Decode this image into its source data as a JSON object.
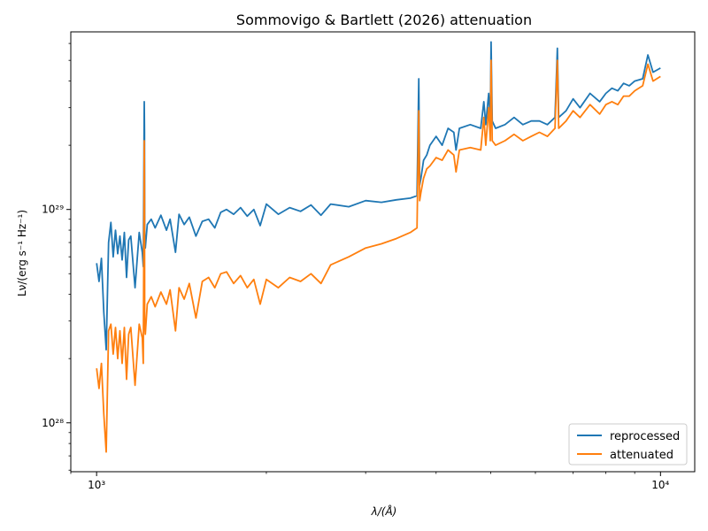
{
  "chart_data": {
    "type": "line",
    "title": "Sommovigo & Bartlett (2026) attenuation",
    "xlabel": "λ/(Å)",
    "ylabel": "Lν/(erg s⁻¹ Hz⁻¹)",
    "xscale": "log",
    "yscale": "log",
    "xlim": [
      900,
      11500
    ],
    "ylim": [
      5.9e+27,
      6.8e+29
    ],
    "xticks": [
      {
        "value": 1000,
        "label": "10³"
      },
      {
        "value": 10000,
        "label": "10⁴"
      }
    ],
    "yticks": [
      {
        "value": 1e+28,
        "label": "10²⁸"
      },
      {
        "value": 1e+29,
        "label": "10²⁹"
      }
    ],
    "grid": false,
    "legend": "bottom-right",
    "series": [
      {
        "name": "reprocessed",
        "color": "#1f77b4",
        "x": [
          1000,
          1010,
          1020,
          1030,
          1040,
          1050,
          1060,
          1070,
          1080,
          1090,
          1100,
          1110,
          1120,
          1130,
          1140,
          1150,
          1170,
          1190,
          1205,
          1210,
          1215,
          1216,
          1217,
          1220,
          1230,
          1250,
          1270,
          1300,
          1330,
          1350,
          1380,
          1400,
          1430,
          1460,
          1500,
          1540,
          1580,
          1620,
          1660,
          1700,
          1750,
          1800,
          1850,
          1900,
          1950,
          2000,
          2100,
          2200,
          2300,
          2400,
          2500,
          2600,
          2800,
          3000,
          3200,
          3400,
          3600,
          3700,
          3727,
          3740,
          3760,
          3800,
          3850,
          3900,
          4000,
          4100,
          4200,
          4300,
          4340,
          4400,
          4600,
          4800,
          4861,
          4900,
          4959,
          4990,
          5007,
          5030,
          5100,
          5300,
          5500,
          5700,
          5900,
          6100,
          6300,
          6500,
          6563,
          6600,
          6800,
          7000,
          7200,
          7500,
          7800,
          8000,
          8200,
          8400,
          8600,
          8800,
          9000,
          9300,
          9500,
          9700,
          10000
        ],
        "y": [
          5.6e+28,
          4.6e+28,
          5.9e+28,
          3.3e+28,
          2.2e+28,
          7e+28,
          8.7e+28,
          6e+28,
          8e+28,
          6.2e+28,
          7.5e+28,
          5.8e+28,
          7.8e+28,
          4.8e+28,
          7.2e+28,
          7.5e+28,
          4.3e+28,
          7.8e+28,
          6.3e+28,
          5.4e+28,
          3.2e+29,
          2.3e+29,
          7.6e+28,
          6.6e+28,
          8.5e+28,
          9e+28,
          8.2e+28,
          9.4e+28,
          8e+28,
          9e+28,
          6.3e+28,
          9.5e+28,
          8.5e+28,
          9.2e+28,
          7.5e+28,
          8.8e+28,
          9e+28,
          8.2e+28,
          9.7e+28,
          1e+29,
          9.5e+28,
          1.02e+29,
          9.3e+28,
          1e+29,
          8.4e+28,
          1.06e+29,
          9.5e+28,
          1.02e+29,
          9.8e+28,
          1.05e+29,
          9.4e+28,
          1.06e+29,
          1.03e+29,
          1.1e+29,
          1.08e+29,
          1.11e+29,
          1.13e+29,
          1.16e+29,
          4.1e+29,
          1.3e+29,
          1.4e+29,
          1.7e+29,
          1.8e+29,
          2e+29,
          2.2e+29,
          2e+29,
          2.4e+29,
          2.3e+29,
          1.9e+29,
          2.4e+29,
          2.5e+29,
          2.4e+29,
          3.2e+29,
          2.5e+29,
          3.5e+29,
          2.6e+29,
          6.1e+29,
          2.6e+29,
          2.4e+29,
          2.5e+29,
          2.7e+29,
          2.5e+29,
          2.6e+29,
          2.6e+29,
          2.5e+29,
          2.7e+29,
          5.7e+29,
          2.7e+29,
          2.9e+29,
          3.3e+29,
          3e+29,
          3.5e+29,
          3.2e+29,
          3.5e+29,
          3.7e+29,
          3.6e+29,
          3.9e+29,
          3.8e+29,
          4e+29,
          4.1e+29,
          5.3e+29,
          4.4e+29,
          4.6e+29
        ]
      },
      {
        "name": "attenuated",
        "color": "#ff7f0e",
        "x": [
          1000,
          1010,
          1020,
          1030,
          1040,
          1050,
          1060,
          1070,
          1080,
          1090,
          1100,
          1110,
          1120,
          1130,
          1140,
          1150,
          1170,
          1190,
          1205,
          1210,
          1215,
          1216,
          1217,
          1220,
          1230,
          1250,
          1270,
          1300,
          1330,
          1350,
          1380,
          1400,
          1430,
          1460,
          1500,
          1540,
          1580,
          1620,
          1660,
          1700,
          1750,
          1800,
          1850,
          1900,
          1950,
          2000,
          2100,
          2200,
          2300,
          2400,
          2500,
          2600,
          2800,
          3000,
          3200,
          3400,
          3600,
          3700,
          3727,
          3740,
          3760,
          3800,
          3850,
          3900,
          4000,
          4100,
          4200,
          4300,
          4340,
          4400,
          4600,
          4800,
          4861,
          4900,
          4959,
          4990,
          5007,
          5030,
          5100,
          5300,
          5500,
          5700,
          5900,
          6100,
          6300,
          6500,
          6563,
          6600,
          6800,
          7000,
          7200,
          7500,
          7800,
          8000,
          8200,
          8400,
          8600,
          8800,
          9000,
          9300,
          9500,
          9700,
          10000
        ],
        "y": [
          1.8e+28,
          1.45e+28,
          1.9e+28,
          1.1e+28,
          7.3e+27,
          2.7e+28,
          2.9e+28,
          2.1e+28,
          2.8e+28,
          2e+28,
          2.7e+28,
          1.9e+28,
          2.8e+28,
          1.6e+28,
          2.6e+28,
          2.8e+28,
          1.5e+28,
          2.9e+28,
          2.5e+28,
          1.9e+28,
          2.1e+29,
          1.2e+29,
          2.9e+28,
          2.6e+28,
          3.6e+28,
          3.9e+28,
          3.5e+28,
          4.1e+28,
          3.6e+28,
          4.2e+28,
          2.7e+28,
          4.3e+28,
          3.8e+28,
          4.5e+28,
          3.1e+28,
          4.6e+28,
          4.8e+28,
          4.3e+28,
          5e+28,
          5.1e+28,
          4.5e+28,
          4.9e+28,
          4.3e+28,
          4.7e+28,
          3.6e+28,
          4.7e+28,
          4.3e+28,
          4.8e+28,
          4.6e+28,
          5e+28,
          4.5e+28,
          5.5e+28,
          6e+28,
          6.6e+28,
          6.9e+28,
          7.3e+28,
          7.8e+28,
          8.2e+28,
          2.9e+29,
          1.1e+29,
          1.2e+29,
          1.4e+29,
          1.55e+29,
          1.6e+29,
          1.75e+29,
          1.7e+29,
          1.9e+29,
          1.8e+29,
          1.5e+29,
          1.9e+29,
          1.95e+29,
          1.9e+29,
          2.7e+29,
          2e+29,
          3e+29,
          2.1e+29,
          5e+29,
          2.1e+29,
          2e+29,
          2.1e+29,
          2.25e+29,
          2.1e+29,
          2.2e+29,
          2.3e+29,
          2.2e+29,
          2.4e+29,
          5e+29,
          2.4e+29,
          2.6e+29,
          2.9e+29,
          2.7e+29,
          3.1e+29,
          2.8e+29,
          3.1e+29,
          3.2e+29,
          3.1e+29,
          3.4e+29,
          3.4e+29,
          3.6e+29,
          3.8e+29,
          4.8e+29,
          4e+29,
          4.2e+29
        ]
      }
    ]
  }
}
